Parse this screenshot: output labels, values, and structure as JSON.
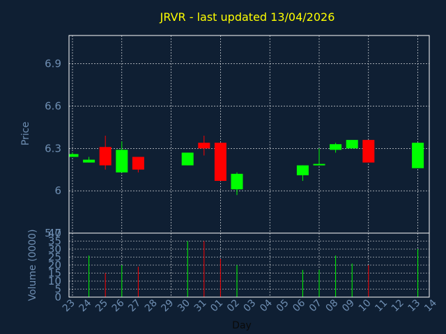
{
  "chart_data": {
    "type": "candlestick",
    "title": "JRVR - last updated 13/04/2026",
    "xlabel": "Day",
    "price": {
      "ylabel": "Price",
      "ylim": [
        5.7,
        7.1
      ],
      "ticks": [
        "5.7",
        "6",
        "6.3",
        "6.6",
        "6.9"
      ],
      "tick_values": [
        5.7,
        6.0,
        6.3,
        6.6,
        6.9
      ]
    },
    "volume": {
      "ylabel": "Volume (0000)",
      "ylim": [
        0,
        40
      ],
      "ticks": [
        "0",
        "5",
        "10",
        "15",
        "20",
        "25",
        "30",
        "35",
        "40"
      ],
      "tick_values": [
        0,
        5,
        10,
        15,
        20,
        25,
        30,
        35,
        40
      ]
    },
    "x_ticks": [
      "23",
      "24",
      "25",
      "26",
      "27",
      "28",
      "29",
      "30",
      "31",
      "01",
      "02",
      "03",
      "04",
      "05",
      "06",
      "07",
      "08",
      "09",
      "10",
      "11",
      "12",
      "13",
      "14"
    ],
    "candles": [
      {
        "i": 0,
        "open": 6.24,
        "close": 6.26,
        "high": 6.27,
        "low": 6.24,
        "volume": 0
      },
      {
        "i": 1,
        "open": 6.2,
        "close": 6.22,
        "high": 6.24,
        "low": 6.2,
        "volume": 26
      },
      {
        "i": 2,
        "open": 6.31,
        "close": 6.18,
        "high": 6.39,
        "low": 6.15,
        "volume": 15
      },
      {
        "i": 3,
        "open": 6.13,
        "close": 6.29,
        "high": 6.35,
        "low": 6.13,
        "volume": 20
      },
      {
        "i": 4,
        "open": 6.24,
        "close": 6.15,
        "high": 6.24,
        "low": 6.13,
        "volume": 19
      },
      {
        "i": 7,
        "open": 6.18,
        "close": 6.27,
        "high": 6.27,
        "low": 6.18,
        "volume": 35
      },
      {
        "i": 8,
        "open": 6.34,
        "close": 6.3,
        "high": 6.39,
        "low": 6.25,
        "volume": 35
      },
      {
        "i": 9,
        "open": 6.34,
        "close": 6.07,
        "high": 6.34,
        "low": 6.07,
        "volume": 24
      },
      {
        "i": 10,
        "open": 6.01,
        "close": 6.12,
        "high": 6.13,
        "low": 5.97,
        "volume": 20
      },
      {
        "i": 14,
        "open": 6.11,
        "close": 6.18,
        "high": 6.18,
        "low": 6.07,
        "volume": 17
      },
      {
        "i": 15,
        "open": 6.18,
        "close": 6.19,
        "high": 6.3,
        "low": 6.18,
        "volume": 17
      },
      {
        "i": 16,
        "open": 6.29,
        "close": 6.33,
        "high": 6.34,
        "low": 6.27,
        "volume": 26
      },
      {
        "i": 17,
        "open": 6.3,
        "close": 6.36,
        "high": 6.36,
        "low": 6.3,
        "volume": 21
      },
      {
        "i": 18,
        "open": 6.36,
        "close": 6.2,
        "high": 6.36,
        "low": 6.2,
        "volume": 20
      },
      {
        "i": 21,
        "open": 6.16,
        "close": 6.34,
        "high": 6.34,
        "low": 6.16,
        "volume": 30
      }
    ],
    "grid": true,
    "colors": {
      "background": "#0f1f33",
      "axis": "#ffffff",
      "grid": "#ffffff",
      "tick_label": "#6f8fb3",
      "title": "#ffff00",
      "up": "#00ff00",
      "down": "#ff0000"
    }
  }
}
